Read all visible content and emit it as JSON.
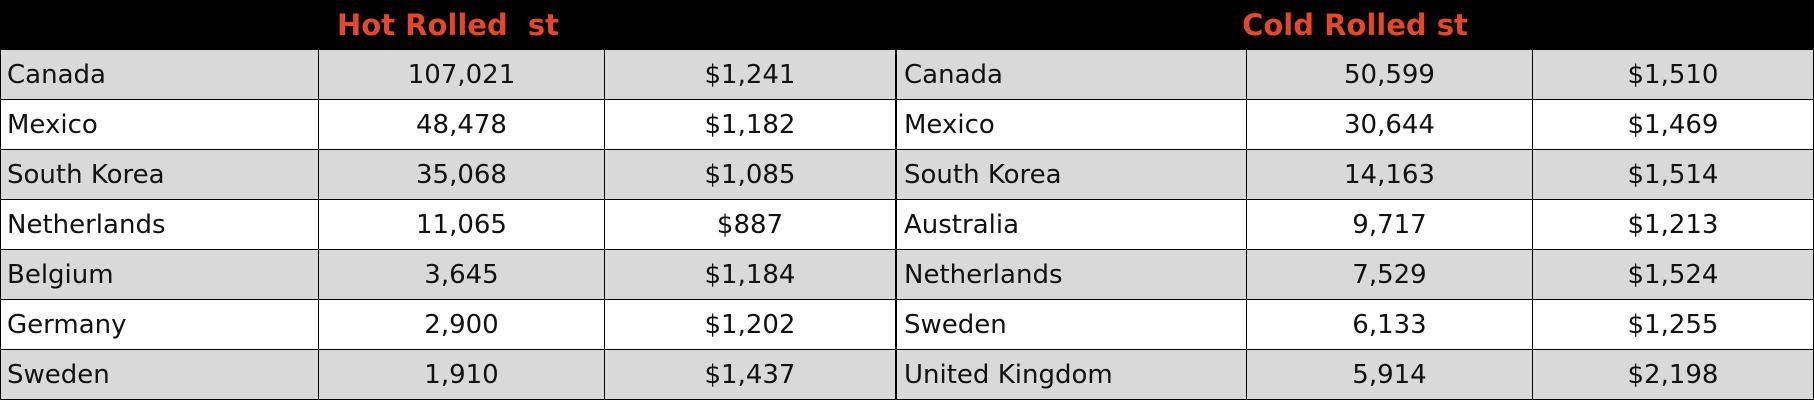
{
  "tables": [
    {
      "title": "Hot Rolled  st",
      "rows": [
        [
          "Canada",
          "107,021",
          "$1,241"
        ],
        [
          "Mexico",
          "48,478",
          "$1,182"
        ],
        [
          "South Korea",
          "35,068",
          "$1,085"
        ],
        [
          "Netherlands",
          "11,065",
          "$887"
        ],
        [
          "Belgium",
          "3,645",
          "$1,184"
        ],
        [
          "Germany",
          "2,900",
          "$1,202"
        ],
        [
          "Sweden",
          "1,910",
          "$1,437"
        ]
      ]
    },
    {
      "title": "Cold Rolled st",
      "rows": [
        [
          "Canada",
          "50,599",
          "$1,510"
        ],
        [
          "Mexico",
          "30,644",
          "$1,469"
        ],
        [
          "South Korea",
          "14,163",
          "$1,514"
        ],
        [
          "Australia",
          "9,717",
          "$1,213"
        ],
        [
          "Netherlands",
          "7,529",
          "$1,524"
        ],
        [
          "Sweden",
          "6,133",
          "$1,255"
        ],
        [
          "United Kingdom",
          "5,914",
          "$2,198"
        ]
      ]
    }
  ]
}
